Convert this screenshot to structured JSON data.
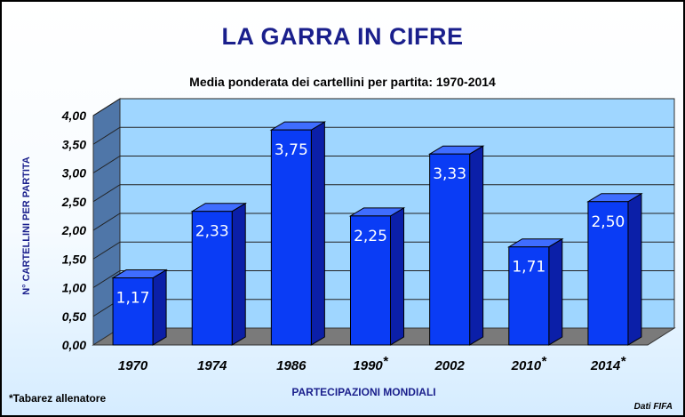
{
  "chart_data": {
    "type": "bar",
    "title": "LA GARRA IN CIFRE",
    "subtitle": "Media ponderata dei cartellini per partita: 1970-2014",
    "ylabel": "N° CARTELLINI PER PARTITA",
    "xlabel": "PARTECIPAZIONI MONDIALI",
    "categories": [
      "1970",
      "1974",
      "1986",
      "1990*",
      "2002",
      "2010*",
      "2014*"
    ],
    "values": [
      1.17,
      2.33,
      3.75,
      2.25,
      3.33,
      1.71,
      2.5
    ],
    "value_labels": [
      "1,17",
      "2,33",
      "3,75",
      "2,25",
      "3,33",
      "1,71",
      "2,50"
    ],
    "ylim": [
      0,
      4
    ],
    "y_ticks": [
      "0,00",
      "0,50",
      "1,00",
      "1,50",
      "2,00",
      "2,50",
      "3,00",
      "3,50",
      "4,00"
    ],
    "grid": true,
    "legend": "none",
    "colors": {
      "bar_front": "#0a3cf5",
      "bar_side": "#0b1fa8",
      "bar_top": "#3f6dff",
      "wall": "#9fd6ff",
      "side_wall": "#4f76a8",
      "floor": "#7a7a7a",
      "title": "#1a1f8c"
    }
  },
  "notes": {
    "footnote": "*Tabarez allenatore",
    "source": "Dati FIFA"
  }
}
